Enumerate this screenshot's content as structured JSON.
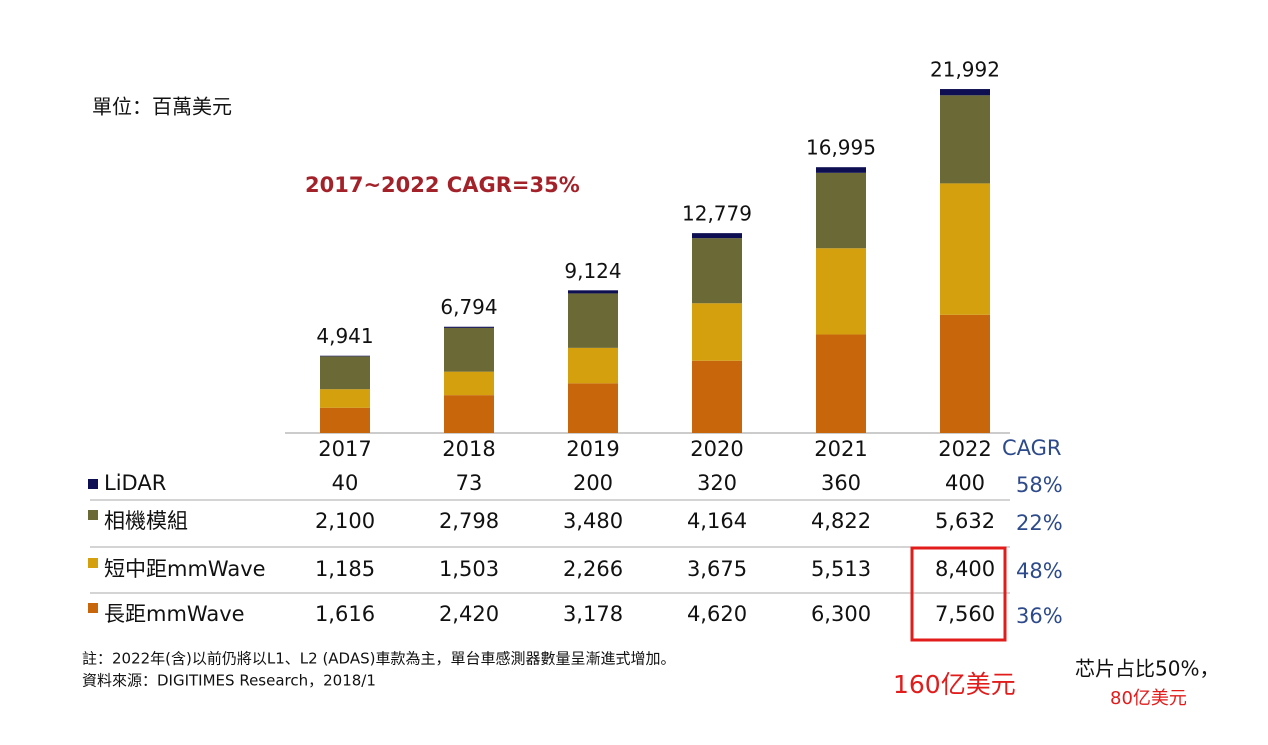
{
  "chart_data": {
    "type": "stacked-bar",
    "unit_label": "單位：百萬美元",
    "annotation": "2017~2022 CAGR=35%",
    "categories": [
      "2017",
      "2018",
      "2019",
      "2020",
      "2021",
      "2022"
    ],
    "cagr_header": "CAGR",
    "series": [
      {
        "name": "LiDAR",
        "color": "#0e0e52",
        "values": [
          40,
          73,
          200,
          320,
          360,
          400
        ],
        "cagr": {
          "value": 58,
          "label": "58%"
        }
      },
      {
        "name": "相機模組",
        "color": "#6b6936",
        "values": [
          2100,
          2798,
          3480,
          4164,
          4822,
          5632
        ],
        "value_labels": [
          "2,100",
          "2,798",
          "3,480",
          "4,164",
          "4,822",
          "5,632"
        ],
        "cagr": {
          "value": 22,
          "label": "22%"
        }
      },
      {
        "name": "短中距mmWave",
        "color": "#d4a00e",
        "values": [
          1185,
          1503,
          2266,
          3675,
          5513,
          8400
        ],
        "value_labels": [
          "1,185",
          "1,503",
          "2,266",
          "3,675",
          "5,513",
          "8,400"
        ],
        "cagr": {
          "value": 48,
          "label": "48%"
        }
      },
      {
        "name": "長距mmWave",
        "color": "#c8660c",
        "values": [
          1616,
          2420,
          3178,
          4620,
          6300,
          7560
        ],
        "value_labels": [
          "1,616",
          "2,420",
          "3,178",
          "4,620",
          "6,300",
          "7,560"
        ],
        "cagr": {
          "value": 36,
          "label": "36%"
        }
      }
    ],
    "totals": [
      {
        "value": 4941,
        "label": "4,941"
      },
      {
        "value": 6794,
        "label": "6,794"
      },
      {
        "value": 9124,
        "label": "9,124"
      },
      {
        "value": 12779,
        "label": "12,779"
      },
      {
        "value": 16995,
        "label": "16,995"
      },
      {
        "value": 21992,
        "label": "21,992"
      }
    ],
    "ylim": [
      0,
      25000
    ],
    "notes": [
      "註：2022年(含)以前仍將以L1、L2 (ADAS)車款為主，單台車感測器數量呈漸進式增加。",
      "資料來源：DIGITIMES Research，2018/1"
    ],
    "callout": "160亿美元",
    "side_note": [
      "芯片占比50%，",
      "80亿美元"
    ]
  }
}
